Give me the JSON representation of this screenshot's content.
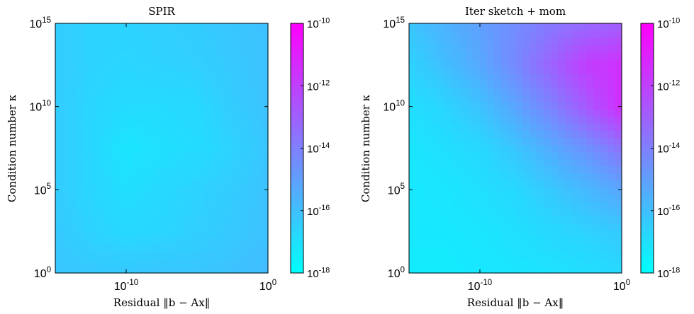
{
  "chart_data": [
    {
      "type": "heatmap",
      "title": "SPIR",
      "xlabel": "Residual ‖b − Ax‖",
      "ylabel": "Condition number κ",
      "x_scale": "log",
      "y_scale": "log",
      "xlim": [
        1e-15,
        1
      ],
      "ylim": [
        1,
        1000000000000000.0
      ],
      "x_ticks": [
        "10^-10",
        "10^0"
      ],
      "y_ticks": [
        "10^0",
        "10^5",
        "10^10",
        "10^15"
      ],
      "colorbar": {
        "scale": "log",
        "range": [
          1e-18,
          1e-10
        ],
        "ticks": [
          "10^-10",
          "10^-12",
          "10^-14",
          "10^-16",
          "10^-18"
        ],
        "colormap": "cool"
      },
      "log10_grid_note": "",
      "log10_x": [
        -15,
        -12.5,
        -10,
        -7.5,
        -5,
        -2.5,
        0
      ],
      "log10_y": [
        0,
        2.5,
        5,
        7.5,
        10,
        12.5,
        15
      ],
      "log10_z": [
        [
          -16.2,
          -16.3,
          -16.3,
          -16.2,
          -16.2,
          -16.1,
          -15.9
        ],
        [
          -16.3,
          -16.6,
          -16.8,
          -16.7,
          -16.5,
          -16.3,
          -16.1
        ],
        [
          -16.4,
          -16.7,
          -17.0,
          -16.8,
          -16.6,
          -16.4,
          -16.1
        ],
        [
          -16.4,
          -16.7,
          -17.2,
          -17.0,
          -16.9,
          -16.6,
          -16.2
        ],
        [
          -16.4,
          -16.7,
          -16.9,
          -16.9,
          -16.8,
          -16.4,
          -16.1
        ],
        [
          -16.4,
          -16.6,
          -16.7,
          -16.6,
          -16.5,
          -16.3,
          -16.1
        ],
        [
          -16.4,
          -16.6,
          -16.6,
          -16.5,
          -16.4,
          -16.2,
          -16.1
        ]
      ]
    },
    {
      "type": "heatmap",
      "title": "Iter sketch + mom",
      "xlabel": "Residual ‖b − Ax‖",
      "ylabel": "Condition number κ",
      "x_scale": "log",
      "y_scale": "log",
      "xlim": [
        1e-15,
        1
      ],
      "ylim": [
        1,
        1000000000000000.0
      ],
      "x_ticks": [
        "10^-10",
        "10^0"
      ],
      "y_ticks": [
        "10^0",
        "10^5",
        "10^10",
        "10^15"
      ],
      "colorbar": {
        "scale": "log",
        "range": [
          1e-18,
          1e-10
        ],
        "ticks": [
          "10^-10",
          "10^-12",
          "10^-14",
          "10^-16",
          "10^-18"
        ],
        "colormap": "cool"
      },
      "log10_x": [
        -15,
        -12.5,
        -10,
        -7.5,
        -5,
        -2.5,
        0
      ],
      "log10_y": [
        0,
        2.5,
        5,
        7.5,
        10,
        12.5,
        15
      ],
      "log10_z": [
        [
          -17.4,
          -17.4,
          -17.3,
          -17.2,
          -17.1,
          -17.0,
          -16.8
        ],
        [
          -17.3,
          -17.3,
          -17.2,
          -17.0,
          -16.8,
          -16.6,
          -16.3
        ],
        [
          -17.3,
          -17.2,
          -17.0,
          -16.8,
          -16.3,
          -15.8,
          -15.2
        ],
        [
          -17.2,
          -17.0,
          -16.8,
          -16.2,
          -15.4,
          -14.6,
          -13.6
        ],
        [
          -17.0,
          -16.7,
          -16.1,
          -15.2,
          -14.1,
          -12.8,
          -11.4
        ],
        [
          -16.6,
          -16.0,
          -15.3,
          -14.3,
          -13.1,
          -11.9,
          -11.5
        ],
        [
          -16.2,
          -15.6,
          -15.0,
          -14.4,
          -13.8,
          -13.3,
          -13.0
        ]
      ]
    }
  ]
}
